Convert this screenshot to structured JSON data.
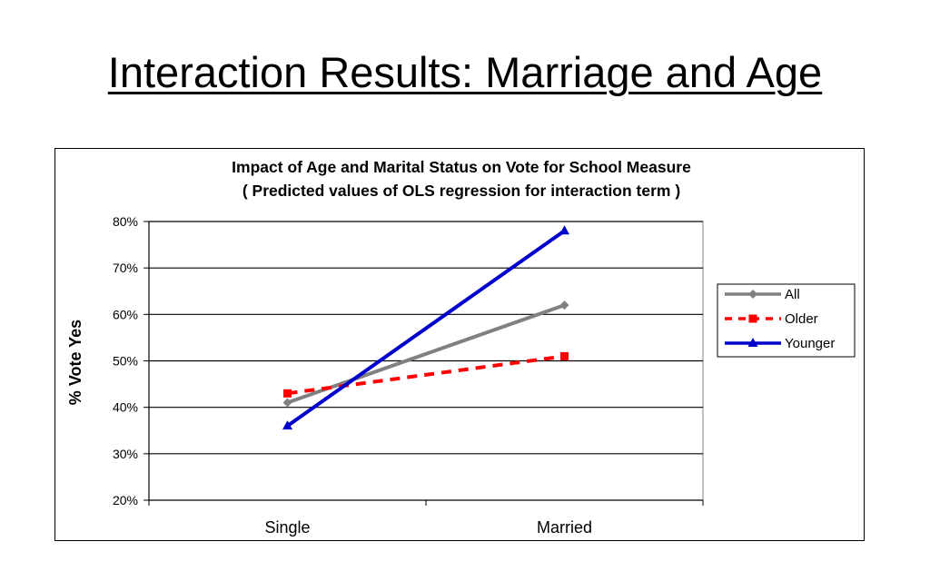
{
  "slide": {
    "title": "Interaction Results: Marriage and Age"
  },
  "chart_data": {
    "type": "line",
    "title": "Impact of Age and Marital Status on Vote for School Measure",
    "subtitle": "( Predicted values of OLS regression for interaction term )",
    "xlabel": "",
    "ylabel": "% Vote Yes",
    "categories": [
      "Single",
      "Married"
    ],
    "ylim": [
      20,
      80
    ],
    "yticks": [
      20,
      30,
      40,
      50,
      60,
      70,
      80
    ],
    "ytick_labels": [
      "20%",
      "30%",
      "40%",
      "50%",
      "60%",
      "70%",
      "80%"
    ],
    "grid": true,
    "legend_position": "right",
    "series": [
      {
        "name": "All",
        "values": [
          41,
          62
        ],
        "color": "#808080",
        "marker": "diamond",
        "dash": "solid"
      },
      {
        "name": "Older",
        "values": [
          43,
          51
        ],
        "color": "#ff0000",
        "marker": "square",
        "dash": "dashed"
      },
      {
        "name": "Younger",
        "values": [
          36,
          78
        ],
        "color": "#0000cc",
        "marker": "triangle",
        "dash": "solid"
      }
    ]
  }
}
